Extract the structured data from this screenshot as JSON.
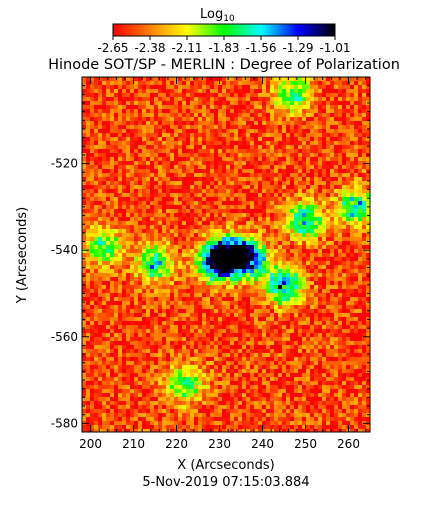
{
  "colorbar": {
    "label_main": "Log",
    "label_sub": "10",
    "ticks": [
      "-2.65",
      "-2.38",
      "-2.11",
      "-1.83",
      "-1.56",
      "-1.29",
      "-1.01"
    ],
    "range": [
      -2.65,
      -1.01
    ],
    "colormap": [
      "#ff0000",
      "#ff7f00",
      "#ffff00",
      "#00ff00",
      "#00ffff",
      "#0000ff",
      "#000000"
    ]
  },
  "chart_data": {
    "type": "heatmap",
    "title": "Hinode SOT/SP - MERLIN : Degree of Polarization",
    "xlabel": "X (Arcseconds)",
    "ylabel": "Y (Arcseconds)",
    "xlim": [
      198,
      265
    ],
    "ylim": [
      -582,
      -500
    ],
    "x_ticks": [
      200,
      210,
      220,
      230,
      240,
      250,
      260
    ],
    "y_ticks": [
      -520,
      -540,
      -560,
      -580
    ],
    "value_range": [
      -2.65,
      -1.01
    ],
    "background_level": -2.5,
    "features": [
      {
        "x": 232,
        "y": -541,
        "value": -1.05
      },
      {
        "x": 237,
        "y": -542,
        "value": -1.1
      },
      {
        "x": 229,
        "y": -543,
        "value": -1.3
      },
      {
        "x": 245,
        "y": -548,
        "value": -1.35
      },
      {
        "x": 250,
        "y": -533,
        "value": -1.5
      },
      {
        "x": 262,
        "y": -530,
        "value": -1.5
      },
      {
        "x": 247,
        "y": -504,
        "value": -1.7
      },
      {
        "x": 215,
        "y": -543,
        "value": -1.6
      },
      {
        "x": 203,
        "y": -539,
        "value": -1.7
      },
      {
        "x": 222,
        "y": -571,
        "value": -1.7
      }
    ]
  },
  "date_label": "5-Nov-2019 07:15:03.884"
}
